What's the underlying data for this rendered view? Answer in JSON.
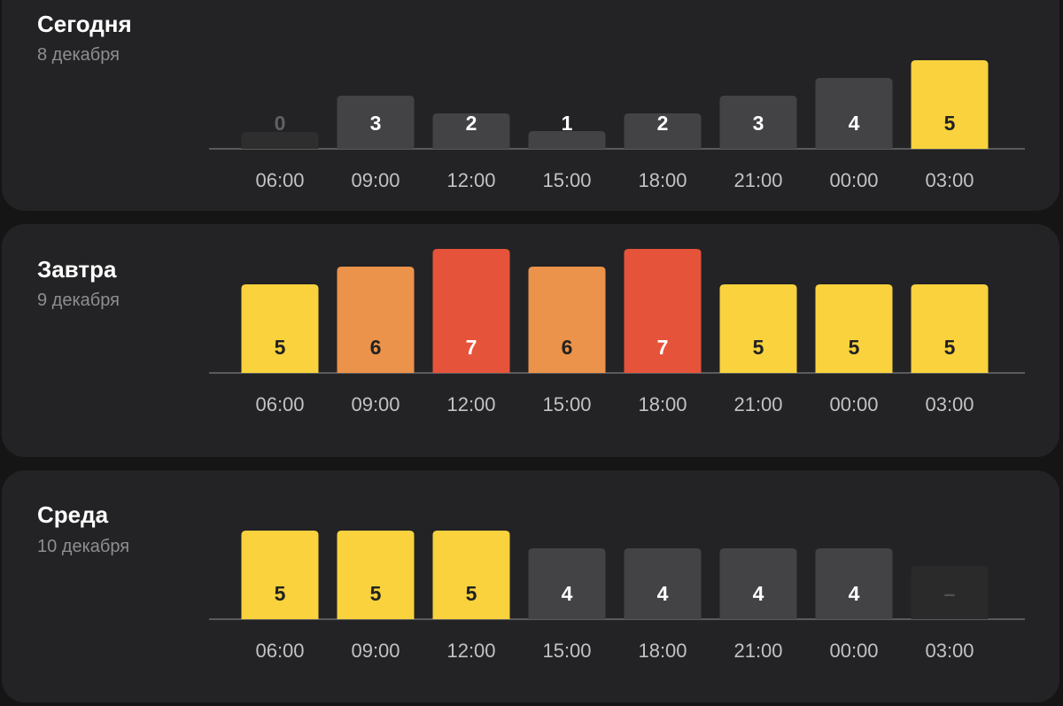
{
  "chart_data": [
    {
      "type": "bar",
      "title": "Сегодня",
      "subtitle": "8 декабря",
      "categories": [
        "06:00",
        "09:00",
        "12:00",
        "15:00",
        "18:00",
        "21:00",
        "00:00",
        "03:00"
      ],
      "values": [
        0,
        3,
        2,
        1,
        2,
        3,
        4,
        5
      ],
      "value_labels": [
        "0",
        "3",
        "2",
        "1",
        "2",
        "3",
        "4",
        "5"
      ],
      "colors": [
        "#2e2e2f",
        "#434345",
        "#434345",
        "#434345",
        "#434345",
        "#434345",
        "#434345",
        "#f9d23d"
      ],
      "label_colors": [
        "#606063",
        "#ffffff",
        "#ffffff",
        "#ffffff",
        "#ffffff",
        "#ffffff",
        "#ffffff",
        "#222222"
      ],
      "ylim": [
        0,
        7
      ],
      "grid": false
    },
    {
      "type": "bar",
      "title": "Завтра",
      "subtitle": "9 декабря",
      "categories": [
        "06:00",
        "09:00",
        "12:00",
        "15:00",
        "18:00",
        "21:00",
        "00:00",
        "03:00"
      ],
      "values": [
        5,
        6,
        7,
        6,
        7,
        5,
        5,
        5
      ],
      "value_labels": [
        "5",
        "6",
        "7",
        "6",
        "7",
        "5",
        "5",
        "5"
      ],
      "colors": [
        "#f9d23d",
        "#eb934a",
        "#e6533b",
        "#eb934a",
        "#e6533b",
        "#f9d23d",
        "#f9d23d",
        "#f9d23d"
      ],
      "label_colors": [
        "#222222",
        "#222222",
        "#ffffff",
        "#222222",
        "#ffffff",
        "#222222",
        "#222222",
        "#222222"
      ],
      "ylim": [
        0,
        7
      ],
      "grid": false
    },
    {
      "type": "bar",
      "title": "Среда",
      "subtitle": "10 декабря",
      "categories": [
        "06:00",
        "09:00",
        "12:00",
        "15:00",
        "18:00",
        "21:00",
        "00:00",
        "03:00"
      ],
      "values": [
        5,
        5,
        5,
        4,
        4,
        4,
        4,
        3
      ],
      "value_labels": [
        "5",
        "5",
        "5",
        "4",
        "4",
        "4",
        "4",
        "–"
      ],
      "colors": [
        "#f9d23d",
        "#f9d23d",
        "#f9d23d",
        "#434345",
        "#434345",
        "#434345",
        "#434345",
        "#2a2a2b"
      ],
      "label_colors": [
        "#222222",
        "#222222",
        "#222222",
        "#ffffff",
        "#ffffff",
        "#ffffff",
        "#ffffff",
        "#505053"
      ],
      "ylim": [
        0,
        7
      ],
      "grid": false
    }
  ]
}
